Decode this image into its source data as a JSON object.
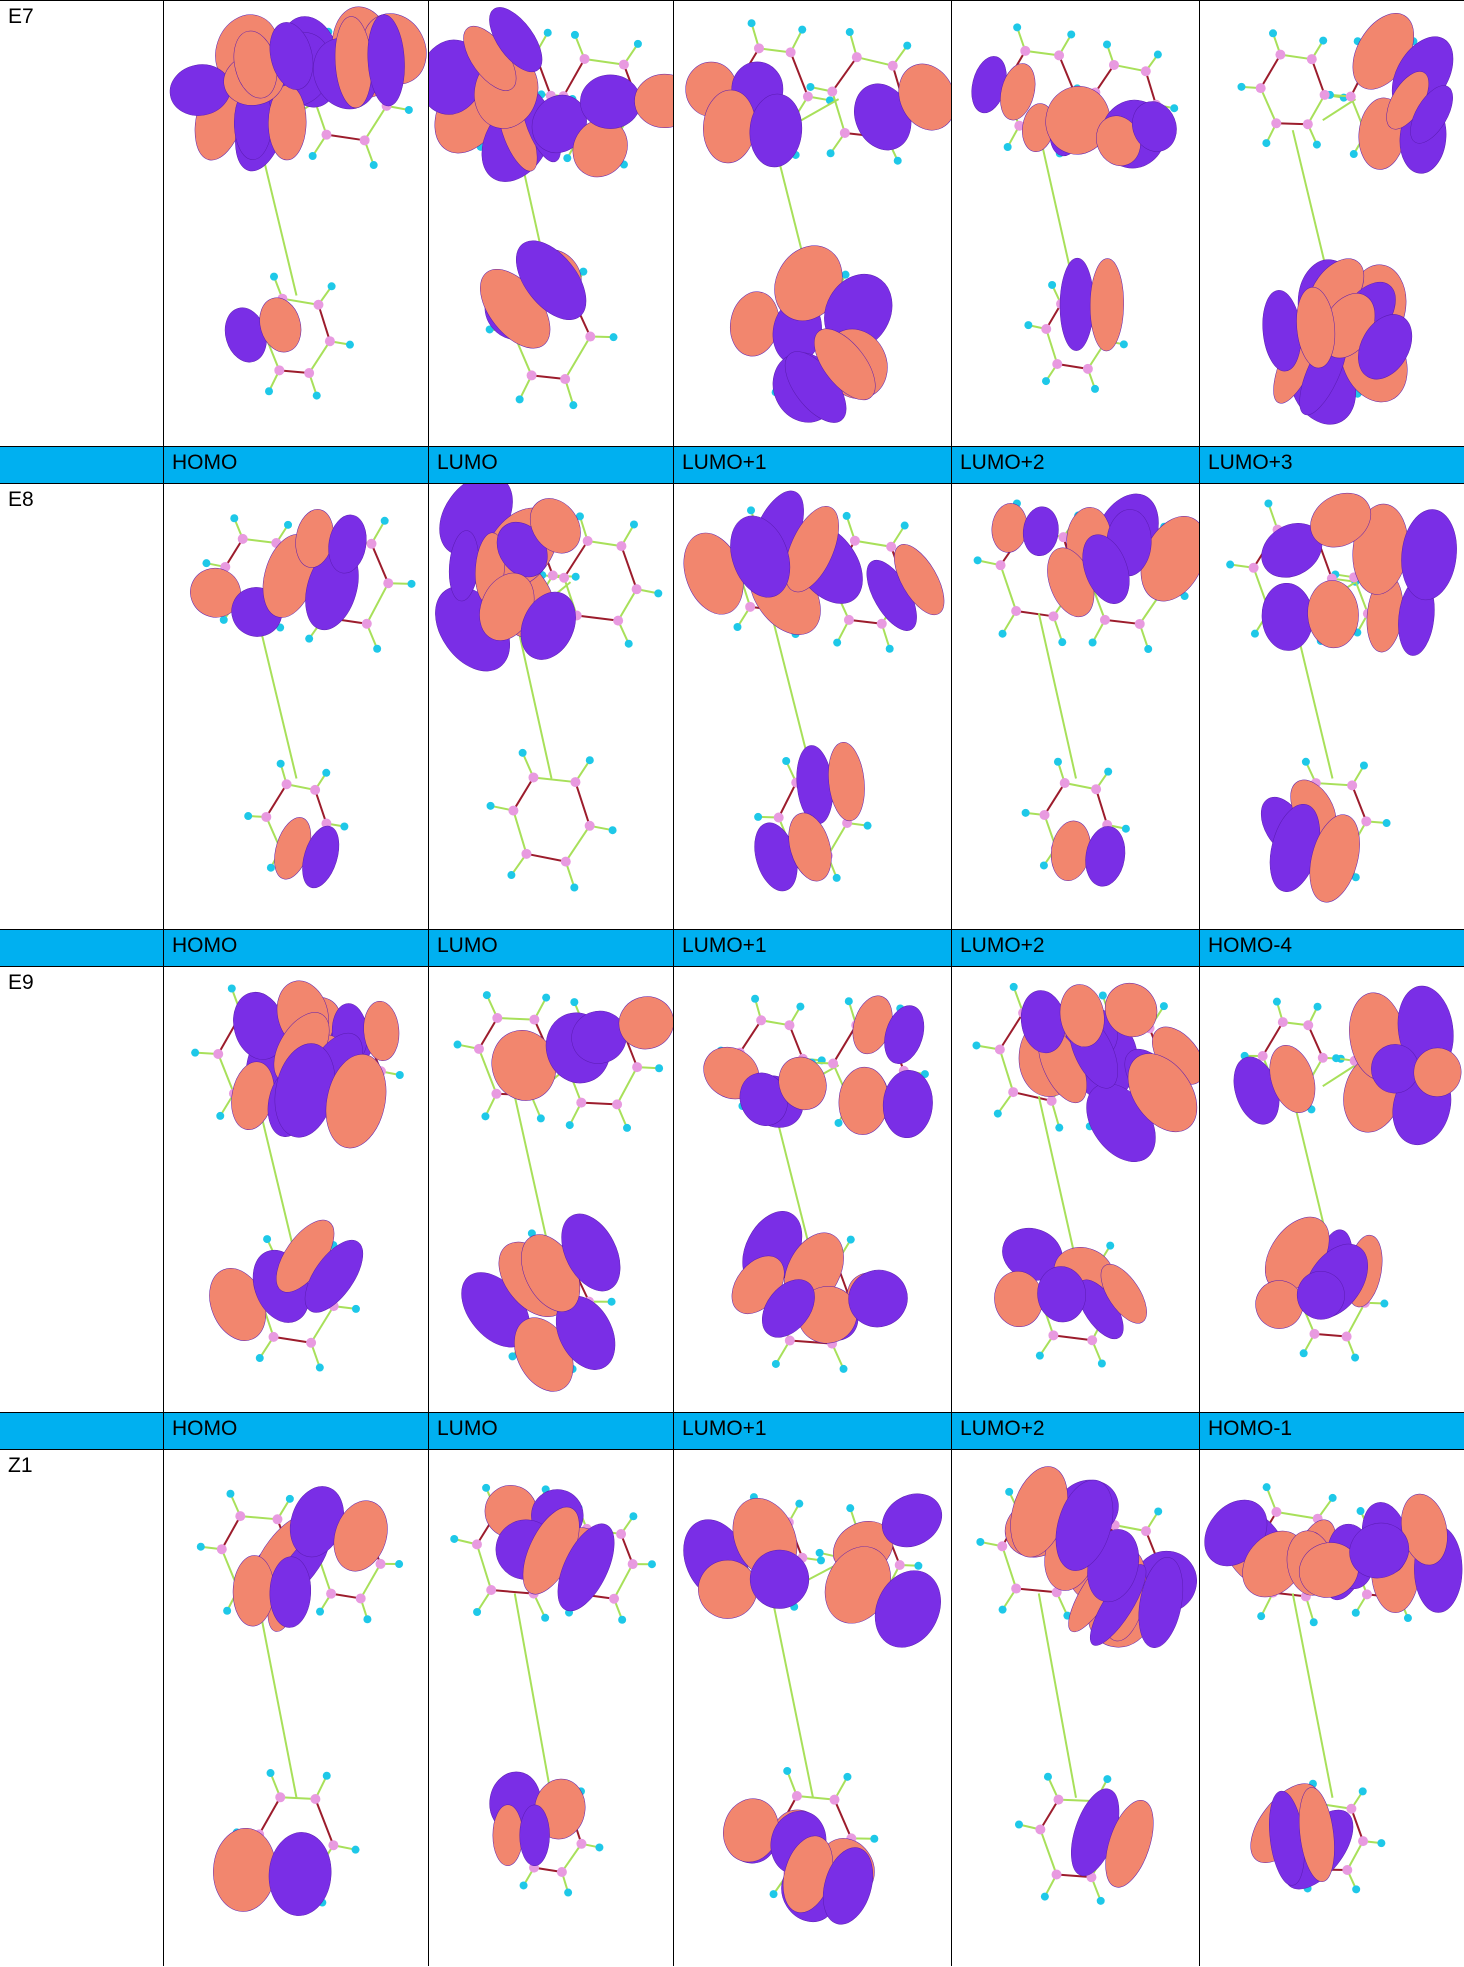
{
  "table": {
    "blocks": [
      {
        "molecule": "E7"
      },
      {
        "orbitals": [
          "HOMO",
          "LUMO",
          "LUMO+1",
          "LUMO+2",
          "LUMO+3"
        ]
      },
      {
        "molecule": "E8"
      },
      {
        "orbitals": [
          "HOMO",
          "LUMO",
          "LUMO+1",
          "LUMO+2",
          "HOMO-4"
        ]
      },
      {
        "molecule": "E9"
      },
      {
        "orbitals": [
          "HOMO",
          "LUMO",
          "LUMO+1",
          "LUMO+2",
          "HOMO-1"
        ]
      },
      {
        "molecule": "Z1"
      }
    ]
  }
}
